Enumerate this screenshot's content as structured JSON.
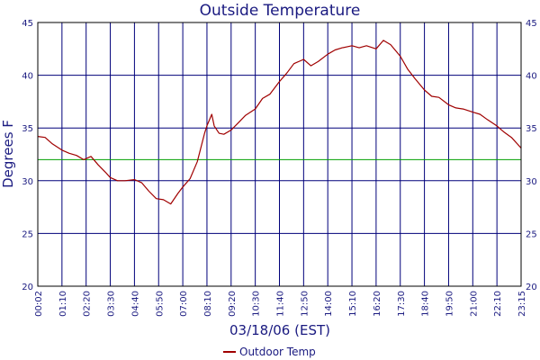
{
  "chart_data": {
    "type": "line",
    "title": "Outside Temperature",
    "xlabel": "03/18/06 (EST)",
    "ylabel": "Degrees F",
    "ylim": [
      20,
      45
    ],
    "y_ticks": [
      20,
      25,
      30,
      35,
      40,
      45
    ],
    "x_tick_labels": [
      "00:02",
      "01:10",
      "02:20",
      "03:30",
      "04:40",
      "05:50",
      "07:00",
      "08:10",
      "09:20",
      "10:30",
      "11:40",
      "12:50",
      "14:00",
      "15:10",
      "16:20",
      "17:30",
      "18:40",
      "19:50",
      "21:00",
      "22:10",
      "23:15"
    ],
    "grid": true,
    "legend_position": "bottom-center",
    "reference_line": {
      "value": 32,
      "color": "#00a000"
    },
    "series": [
      {
        "name": "Outdoor Temp",
        "color": "#a00000",
        "x_tick_index": [
          0,
          0.3,
          0.6,
          1,
          1.3,
          1.6,
          1.9,
          2.2,
          2.5,
          2.8,
          3,
          3.3,
          3.6,
          4,
          4.3,
          4.6,
          4.9,
          5.2,
          5.5,
          5.8,
          6,
          6.3,
          6.6,
          6.9,
          7,
          7.2,
          7.3,
          7.5,
          7.7,
          8,
          8.3,
          8.6,
          9,
          9.3,
          9.6,
          10,
          10.3,
          10.6,
          11,
          11.3,
          11.6,
          12,
          12.3,
          12.6,
          13,
          13.3,
          13.6,
          14,
          14.3,
          14.6,
          15,
          15.3,
          15.6,
          16,
          16.3,
          16.6,
          17,
          17.3,
          17.6,
          18,
          18.3,
          18.6,
          19,
          19.3,
          19.6,
          20
        ],
        "values": [
          34.2,
          34.1,
          33.5,
          32.9,
          32.6,
          32.4,
          32.0,
          32.3,
          31.5,
          30.8,
          30.3,
          30.0,
          30.0,
          30.1,
          29.8,
          29.0,
          28.3,
          28.2,
          27.8,
          28.8,
          29.4,
          30.2,
          31.8,
          34.5,
          35.2,
          36.3,
          35.2,
          34.5,
          34.4,
          34.8,
          35.5,
          36.2,
          36.8,
          37.8,
          38.2,
          39.4,
          40.2,
          41.1,
          41.5,
          40.9,
          41.3,
          42.0,
          42.4,
          42.6,
          42.8,
          42.6,
          42.8,
          42.5,
          43.3,
          42.9,
          41.8,
          40.6,
          39.7,
          38.6,
          38.0,
          37.9,
          37.2,
          36.9,
          36.8,
          36.5,
          36.3,
          35.8,
          35.2,
          34.6,
          34.1,
          33.1
        ]
      }
    ]
  }
}
